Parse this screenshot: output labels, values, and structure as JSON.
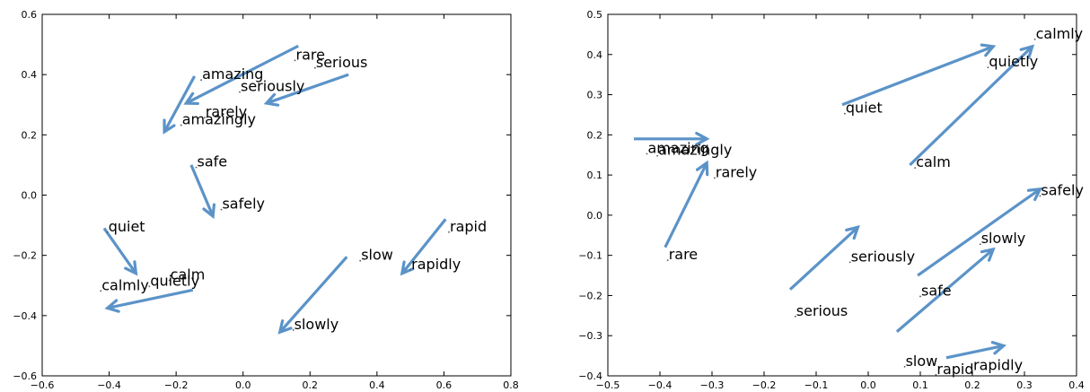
{
  "chart_data": [
    {
      "type": "scatter",
      "title": "",
      "xlabel": "",
      "ylabel": "",
      "xlim": [
        -0.6,
        0.8
      ],
      "ylim": [
        -0.6,
        0.6
      ],
      "xticks": [
        "−0.6",
        "−0.4",
        "−0.2",
        "0.0",
        "0.2",
        "0.4",
        "0.6",
        "0.8"
      ],
      "yticks": [
        "−0.6",
        "−0.4",
        "−0.2",
        "0.0",
        "0.2",
        "0.4",
        "0.6"
      ],
      "grid": false,
      "arrow_color": "#5b93c8",
      "points": [
        {
          "label": "rare",
          "x": 0.155,
          "y": 0.45
        },
        {
          "label": "serious",
          "x": 0.215,
          "y": 0.425
        },
        {
          "label": "amazing",
          "x": -0.125,
          "y": 0.385
        },
        {
          "label": "seriously",
          "x": -0.01,
          "y": 0.345
        },
        {
          "label": "rarely",
          "x": -0.115,
          "y": 0.26
        },
        {
          "label": "amazingly",
          "x": -0.185,
          "y": 0.235
        },
        {
          "label": "safe",
          "x": -0.14,
          "y": 0.095
        },
        {
          "label": "safely",
          "x": -0.065,
          "y": -0.045
        },
        {
          "label": "quiet",
          "x": -0.405,
          "y": -0.12
        },
        {
          "label": "calm",
          "x": -0.22,
          "y": -0.28
        },
        {
          "label": "quietly",
          "x": -0.28,
          "y": -0.3
        },
        {
          "label": "calmly",
          "x": -0.425,
          "y": -0.315
        },
        {
          "label": "rapid",
          "x": 0.615,
          "y": -0.12
        },
        {
          "label": "slow",
          "x": 0.35,
          "y": -0.215
        },
        {
          "label": "rapidly",
          "x": 0.5,
          "y": -0.245
        },
        {
          "label": "slowly",
          "x": 0.15,
          "y": -0.445
        }
      ],
      "arrows": [
        {
          "from": "rare",
          "x1": 0.165,
          "y1": 0.495,
          "x2": -0.17,
          "y2": 0.305
        },
        {
          "from": "serious",
          "x1": 0.315,
          "y1": 0.4,
          "x2": 0.07,
          "y2": 0.305
        },
        {
          "from": "amazing",
          "x1": -0.145,
          "y1": 0.395,
          "x2": -0.235,
          "y2": 0.21
        },
        {
          "from": "safe",
          "x1": -0.155,
          "y1": 0.1,
          "x2": -0.09,
          "y2": -0.07
        },
        {
          "from": "quiet",
          "x1": -0.415,
          "y1": -0.11,
          "x2": -0.32,
          "y2": -0.26
        },
        {
          "from": "calm",
          "x1": -0.15,
          "y1": -0.315,
          "x2": -0.405,
          "y2": -0.375
        },
        {
          "from": "rapid",
          "x1": 0.605,
          "y1": -0.08,
          "x2": 0.475,
          "y2": -0.26
        },
        {
          "from": "slow",
          "x1": 0.31,
          "y1": -0.205,
          "x2": 0.11,
          "y2": -0.455
        }
      ]
    },
    {
      "type": "scatter",
      "title": "",
      "xlabel": "",
      "ylabel": "",
      "xlim": [
        -0.5,
        0.4
      ],
      "ylim": [
        -0.4,
        0.5
      ],
      "xticks": [
        "−0.5",
        "−0.4",
        "−0.3",
        "−0.2",
        "−0.1",
        "0.0",
        "0.1",
        "0.2",
        "0.3",
        "0.4"
      ],
      "yticks": [
        "−0.4",
        "−0.3",
        "−0.2",
        "−0.1",
        "0.0",
        "0.1",
        "0.2",
        "0.3",
        "0.4",
        "0.5"
      ],
      "grid": false,
      "arrow_color": "#5b93c8",
      "points": [
        {
          "label": "calmly",
          "x": 0.32,
          "y": 0.44
        },
        {
          "label": "quietly",
          "x": 0.23,
          "y": 0.37
        },
        {
          "label": "quiet",
          "x": -0.045,
          "y": 0.255
        },
        {
          "label": "amazing",
          "x": -0.425,
          "y": 0.155
        },
        {
          "label": "amazingly",
          "x": -0.405,
          "y": 0.15
        },
        {
          "label": "calm",
          "x": 0.09,
          "y": 0.12
        },
        {
          "label": "rarely",
          "x": -0.295,
          "y": 0.095
        },
        {
          "label": "safely",
          "x": 0.33,
          "y": 0.05
        },
        {
          "label": "slowly",
          "x": 0.215,
          "y": -0.07
        },
        {
          "label": "rare",
          "x": -0.385,
          "y": -0.11
        },
        {
          "label": "seriously",
          "x": -0.035,
          "y": -0.115
        },
        {
          "label": "safe",
          "x": 0.1,
          "y": -0.2
        },
        {
          "label": "serious",
          "x": -0.14,
          "y": -0.25
        },
        {
          "label": "slow",
          "x": 0.07,
          "y": -0.375
        },
        {
          "label": "rapid",
          "x": 0.13,
          "y": -0.395
        },
        {
          "label": "rapidly",
          "x": 0.2,
          "y": -0.385
        }
      ],
      "arrows": [
        {
          "from": "quiet",
          "x1": -0.05,
          "y1": 0.275,
          "x2": 0.24,
          "y2": 0.42
        },
        {
          "from": "calm",
          "x1": 0.08,
          "y1": 0.125,
          "x2": 0.315,
          "y2": 0.42
        },
        {
          "from": "amazing",
          "x1": -0.45,
          "y1": 0.19,
          "x2": -0.31,
          "y2": 0.19
        },
        {
          "from": "rare",
          "x1": -0.39,
          "y1": -0.08,
          "x2": -0.31,
          "y2": 0.13
        },
        {
          "from": "serious",
          "x1": -0.15,
          "y1": -0.185,
          "x2": -0.02,
          "y2": -0.03
        },
        {
          "from": "safe",
          "x1": 0.095,
          "y1": -0.15,
          "x2": 0.33,
          "y2": 0.065
        },
        {
          "from": "slow",
          "x1": 0.055,
          "y1": -0.29,
          "x2": 0.24,
          "y2": -0.085
        },
        {
          "from": "rapid",
          "x1": 0.15,
          "y1": -0.355,
          "x2": 0.26,
          "y2": -0.325
        }
      ]
    }
  ]
}
